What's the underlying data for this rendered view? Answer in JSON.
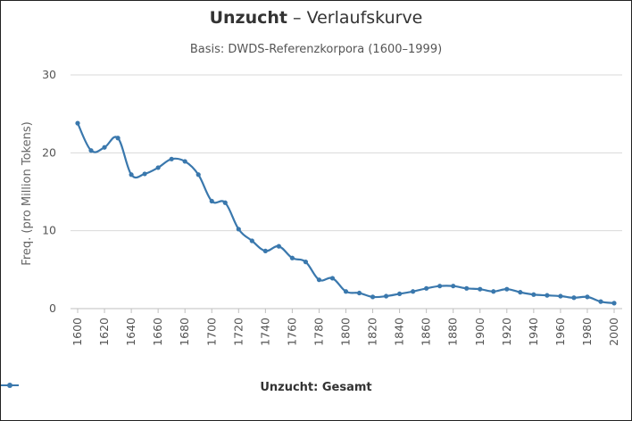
{
  "header": {
    "title_term": "Unzucht",
    "title_rest": " – Verlaufskurve",
    "subtitle": "Basis: DWDS-Referenzkorpora (1600–1999)"
  },
  "colors": {
    "series": "#3a78ad",
    "grid": "#d9d9d9",
    "axis": "#bfbfbf"
  },
  "chart_data": {
    "type": "line",
    "title": "Unzucht – Verlaufskurve",
    "subtitle": "Basis: DWDS-Referenzkorpora (1600–1999)",
    "xlabel": "",
    "ylabel": "Freq. (pro Million Tokens)",
    "xlim": [
      1600,
      2000
    ],
    "ylim": [
      0,
      30
    ],
    "x_ticks": [
      1600,
      1620,
      1640,
      1660,
      1680,
      1700,
      1720,
      1740,
      1760,
      1780,
      1800,
      1820,
      1840,
      1860,
      1880,
      1900,
      1920,
      1940,
      1960,
      1980,
      2000
    ],
    "y_ticks": [
      0,
      10,
      20,
      30
    ],
    "grid": true,
    "legend": "bottom-center",
    "series": [
      {
        "name": "Unzucht: Gesamt",
        "x": [
          1600,
          1610,
          1620,
          1630,
          1640,
          1650,
          1660,
          1670,
          1680,
          1690,
          1700,
          1710,
          1720,
          1730,
          1740,
          1750,
          1760,
          1770,
          1780,
          1790,
          1800,
          1810,
          1820,
          1830,
          1840,
          1850,
          1860,
          1870,
          1880,
          1890,
          1900,
          1910,
          1920,
          1930,
          1940,
          1950,
          1960,
          1970,
          1980,
          1990,
          2000
        ],
        "y": [
          23.8,
          20.3,
          20.7,
          21.9,
          17.2,
          17.3,
          18.1,
          19.2,
          18.9,
          17.2,
          13.8,
          13.6,
          10.2,
          8.7,
          7.4,
          8.0,
          6.5,
          6.0,
          3.7,
          3.9,
          2.2,
          2.0,
          1.5,
          1.6,
          1.9,
          2.2,
          2.6,
          2.9,
          2.9,
          2.6,
          2.5,
          2.2,
          2.5,
          2.1,
          1.8,
          1.7,
          1.6,
          1.4,
          1.5,
          0.9,
          0.7
        ]
      }
    ]
  }
}
